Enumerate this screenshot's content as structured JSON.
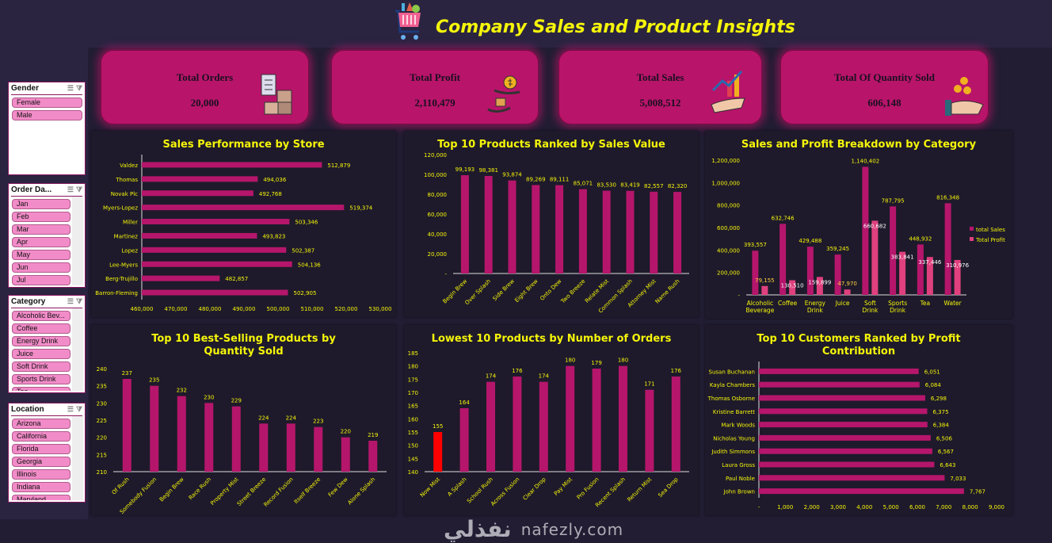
{
  "header": {
    "title": "Company Sales and Product Insights",
    "logo_icon": "shopping-cart-icon"
  },
  "kpis": [
    {
      "label": "Total Orders",
      "value": "20,000",
      "icon": "clipboard-boxes-icon"
    },
    {
      "label": "Total Profit",
      "value": "2,110,479",
      "icon": "money-exchange-icon"
    },
    {
      "label": "Total Sales",
      "value": "5,008,512",
      "icon": "growth-hand-icon"
    },
    {
      "label": "Total Of Quantity Sold",
      "value": "606,148",
      "icon": "coins-hand-icon"
    }
  ],
  "slicers": [
    {
      "title": "Gender",
      "items": [
        "Female",
        "Male"
      ]
    },
    {
      "title": "Order Da...",
      "items": [
        "Jan",
        "Feb",
        "Mar",
        "Apr",
        "May",
        "Jun",
        "Jul"
      ]
    },
    {
      "title": "Category",
      "items": [
        "Alcoholic Bev...",
        "Coffee",
        "Energy Drink",
        "Juice",
        "Soft Drink",
        "Sports Drink",
        "Tea"
      ]
    },
    {
      "title": "Location",
      "items": [
        "Arizona",
        "California",
        "Florida",
        "Georgia",
        "Illinois",
        "Indiana",
        "Maryland"
      ]
    }
  ],
  "colors": {
    "bar": "#b5166b",
    "highlight": "#ff0000",
    "profit": "#e0407e",
    "text": "#f5f50a",
    "panel": "#1e1a2b",
    "card": "#b8146a"
  },
  "watermark": {
    "arabic": "نفذلي",
    "latin": "nafezly.com"
  },
  "chart_data": [
    {
      "id": "store",
      "type": "bar",
      "orientation": "horizontal",
      "title": "Sales Performance by Store",
      "categories": [
        "Valdez",
        "Thomas",
        "Novak Plc",
        "Myers-Lopez",
        "Miller",
        "Martinez",
        "Lopez",
        "Lee-Myers",
        "Berg-Trujillo",
        "Barron-Fleming"
      ],
      "values": [
        512879,
        494036,
        492768,
        519374,
        503346,
        493823,
        502387,
        504136,
        482857,
        502905
      ],
      "xlim": [
        460000,
        530000
      ],
      "ticks": [
        "460,000",
        "470,000",
        "480,000",
        "490,000",
        "500,000",
        "510,000",
        "520,000",
        "530,000"
      ],
      "grid": false
    },
    {
      "id": "topsales",
      "type": "bar",
      "orientation": "vertical",
      "title": "Top 10 Products Ranked by Sales Value",
      "categories": [
        "Begin Brew",
        "Over Splash",
        "Side Brew",
        "Eight Brew",
        "Onto Dew",
        "Two Breeze",
        "Relate Mist",
        "Common Splash",
        "Attorney Mist",
        "Name Rush"
      ],
      "values": [
        99193,
        98381,
        93874,
        89269,
        89111,
        85071,
        83530,
        83419,
        82557,
        82320
      ],
      "ylim": [
        0,
        120000
      ],
      "ticks": [
        "-",
        "20,000",
        "40,000",
        "60,000",
        "80,000",
        "100,000",
        "120,000"
      ],
      "grid": false
    },
    {
      "id": "category",
      "type": "bar",
      "orientation": "vertical",
      "title": "Sales and Profit Breakdown by Category",
      "categories": [
        "Alcoholic Beverage",
        "Coffee",
        "Energy Drink",
        "Juice",
        "Soft Drink",
        "Sports Drink",
        "Tea",
        "Water"
      ],
      "series": [
        {
          "name": "total Sales",
          "values": [
            393557,
            632746,
            429488,
            359245,
            1140402,
            787795,
            448932,
            816348
          ]
        },
        {
          "name": "Total Profit",
          "values": [
            79155,
            130510,
            159899,
            47970,
            660682,
            383841,
            337446,
            310976
          ]
        }
      ],
      "ylim": [
        0,
        1200000
      ],
      "ticks": [
        "-",
        "200,000",
        "400,000",
        "600,000",
        "800,000",
        "1,000,000",
        "1,200,000"
      ],
      "legend": "right",
      "grid": false
    },
    {
      "id": "bestqty",
      "type": "bar",
      "orientation": "vertical",
      "title": "Top 10 Best-Selling Products by Quantity Sold",
      "categories": [
        "Of Rush",
        "Somebody Fusion",
        "Begin Brew",
        "Race Rush",
        "Property Mist",
        "Street Breeze",
        "Record Fusion",
        "Itself Breeze",
        "Few Dew",
        "Alone Splash"
      ],
      "values": [
        237,
        235,
        232,
        230,
        229,
        224,
        224,
        223,
        220,
        219
      ],
      "ylim": [
        210,
        240
      ],
      "ticks": [
        "210",
        "215",
        "220",
        "225",
        "230",
        "235",
        "240"
      ],
      "grid": false
    },
    {
      "id": "lowest",
      "type": "bar",
      "orientation": "vertical",
      "title": "Lowest 10 Products by Number of Orders",
      "categories": [
        "Now Mist",
        "A Splash",
        "School Rush",
        "Across Fusion",
        "Clear Drop",
        "Pay Mist",
        "Pro Fusion",
        "Recent Splash",
        "Return Mist",
        "Sea Drop"
      ],
      "values": [
        155,
        164,
        174,
        176,
        174,
        180,
        179,
        180,
        171,
        176
      ],
      "highlight_index": 0,
      "ylim": [
        140,
        185
      ],
      "ticks": [
        "140",
        "145",
        "150",
        "155",
        "160",
        "165",
        "170",
        "175",
        "180",
        "185"
      ],
      "grid": false
    },
    {
      "id": "customers",
      "type": "bar",
      "orientation": "horizontal",
      "title": "Top 10 Customers Ranked by Profit Contribution",
      "categories": [
        "Susan Buchanan",
        "Kayla Chambers",
        "Thomas Osborne",
        "Kristine Barrett",
        "Mark Woods",
        "Nicholas Young",
        "Judith Simmons",
        "Laura Gross",
        "Paul Noble",
        "John Brown"
      ],
      "values": [
        6051,
        6084,
        6298,
        6375,
        6384,
        6506,
        6567,
        6643,
        7033,
        7767
      ],
      "xlim": [
        0,
        9000
      ],
      "ticks": [
        "-",
        "1,000",
        "2,000",
        "3,000",
        "4,000",
        "5,000",
        "6,000",
        "7,000",
        "8,000",
        "9,000"
      ],
      "grid": false
    }
  ]
}
